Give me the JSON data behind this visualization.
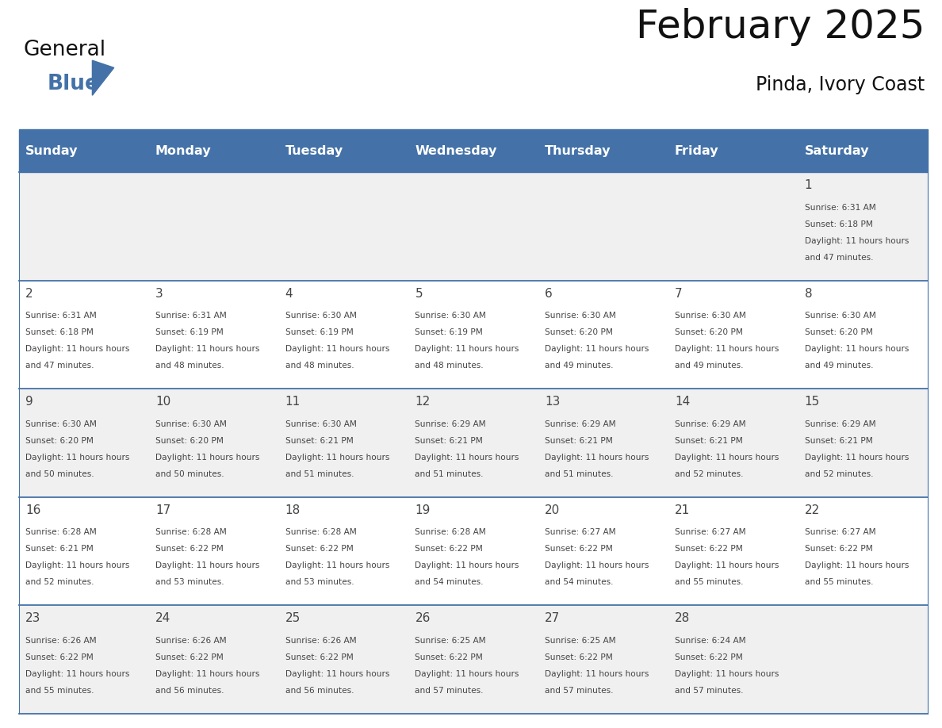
{
  "title": "February 2025",
  "subtitle": "Pinda, Ivory Coast",
  "days_of_week": [
    "Sunday",
    "Monday",
    "Tuesday",
    "Wednesday",
    "Thursday",
    "Friday",
    "Saturday"
  ],
  "header_bg": "#4472a8",
  "header_text_color": "#ffffff",
  "cell_bg_light": "#f0f0f0",
  "cell_bg_white": "#ffffff",
  "text_color": "#444444",
  "line_color": "#4472a8",
  "title_color": "#1a1a1a",
  "calendar_data": [
    [
      null,
      null,
      null,
      null,
      null,
      null,
      {
        "day": 1,
        "sunrise": "6:31 AM",
        "sunset": "6:18 PM",
        "daylight": "11 hours and 47 minutes."
      }
    ],
    [
      {
        "day": 2,
        "sunrise": "6:31 AM",
        "sunset": "6:18 PM",
        "daylight": "11 hours and 47 minutes."
      },
      {
        "day": 3,
        "sunrise": "6:31 AM",
        "sunset": "6:19 PM",
        "daylight": "11 hours and 48 minutes."
      },
      {
        "day": 4,
        "sunrise": "6:30 AM",
        "sunset": "6:19 PM",
        "daylight": "11 hours and 48 minutes."
      },
      {
        "day": 5,
        "sunrise": "6:30 AM",
        "sunset": "6:19 PM",
        "daylight": "11 hours and 48 minutes."
      },
      {
        "day": 6,
        "sunrise": "6:30 AM",
        "sunset": "6:20 PM",
        "daylight": "11 hours and 49 minutes."
      },
      {
        "day": 7,
        "sunrise": "6:30 AM",
        "sunset": "6:20 PM",
        "daylight": "11 hours and 49 minutes."
      },
      {
        "day": 8,
        "sunrise": "6:30 AM",
        "sunset": "6:20 PM",
        "daylight": "11 hours and 49 minutes."
      }
    ],
    [
      {
        "day": 9,
        "sunrise": "6:30 AM",
        "sunset": "6:20 PM",
        "daylight": "11 hours and 50 minutes."
      },
      {
        "day": 10,
        "sunrise": "6:30 AM",
        "sunset": "6:20 PM",
        "daylight": "11 hours and 50 minutes."
      },
      {
        "day": 11,
        "sunrise": "6:30 AM",
        "sunset": "6:21 PM",
        "daylight": "11 hours and 51 minutes."
      },
      {
        "day": 12,
        "sunrise": "6:29 AM",
        "sunset": "6:21 PM",
        "daylight": "11 hours and 51 minutes."
      },
      {
        "day": 13,
        "sunrise": "6:29 AM",
        "sunset": "6:21 PM",
        "daylight": "11 hours and 51 minutes."
      },
      {
        "day": 14,
        "sunrise": "6:29 AM",
        "sunset": "6:21 PM",
        "daylight": "11 hours and 52 minutes."
      },
      {
        "day": 15,
        "sunrise": "6:29 AM",
        "sunset": "6:21 PM",
        "daylight": "11 hours and 52 minutes."
      }
    ],
    [
      {
        "day": 16,
        "sunrise": "6:28 AM",
        "sunset": "6:21 PM",
        "daylight": "11 hours and 52 minutes."
      },
      {
        "day": 17,
        "sunrise": "6:28 AM",
        "sunset": "6:22 PM",
        "daylight": "11 hours and 53 minutes."
      },
      {
        "day": 18,
        "sunrise": "6:28 AM",
        "sunset": "6:22 PM",
        "daylight": "11 hours and 53 minutes."
      },
      {
        "day": 19,
        "sunrise": "6:28 AM",
        "sunset": "6:22 PM",
        "daylight": "11 hours and 54 minutes."
      },
      {
        "day": 20,
        "sunrise": "6:27 AM",
        "sunset": "6:22 PM",
        "daylight": "11 hours and 54 minutes."
      },
      {
        "day": 21,
        "sunrise": "6:27 AM",
        "sunset": "6:22 PM",
        "daylight": "11 hours and 55 minutes."
      },
      {
        "day": 22,
        "sunrise": "6:27 AM",
        "sunset": "6:22 PM",
        "daylight": "11 hours and 55 minutes."
      }
    ],
    [
      {
        "day": 23,
        "sunrise": "6:26 AM",
        "sunset": "6:22 PM",
        "daylight": "11 hours and 55 minutes."
      },
      {
        "day": 24,
        "sunrise": "6:26 AM",
        "sunset": "6:22 PM",
        "daylight": "11 hours and 56 minutes."
      },
      {
        "day": 25,
        "sunrise": "6:26 AM",
        "sunset": "6:22 PM",
        "daylight": "11 hours and 56 minutes."
      },
      {
        "day": 26,
        "sunrise": "6:25 AM",
        "sunset": "6:22 PM",
        "daylight": "11 hours and 57 minutes."
      },
      {
        "day": 27,
        "sunrise": "6:25 AM",
        "sunset": "6:22 PM",
        "daylight": "11 hours and 57 minutes."
      },
      {
        "day": 28,
        "sunrise": "6:24 AM",
        "sunset": "6:22 PM",
        "daylight": "11 hours and 57 minutes."
      },
      null
    ]
  ],
  "logo_text_general": "General",
  "logo_text_blue": "Blue",
  "figsize": [
    11.88,
    9.18
  ],
  "dpi": 100
}
